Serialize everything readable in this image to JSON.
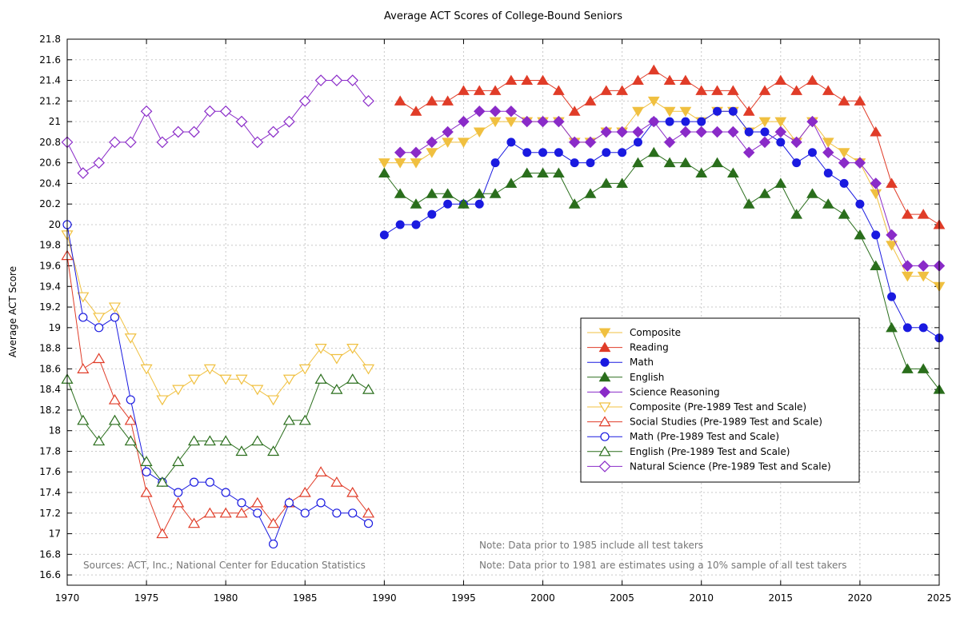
{
  "chart_data": {
    "type": "line",
    "title": "Average ACT Scores of College-Bound Seniors",
    "xlabel": "",
    "ylabel": "Average ACT Score",
    "xlim": [
      1970,
      2025
    ],
    "ylim": [
      16.5,
      21.8
    ],
    "x_ticks": [
      1970,
      1975,
      1980,
      1985,
      1990,
      1995,
      2000,
      2005,
      2010,
      2015,
      2020,
      2025
    ],
    "y_ticks": [
      16.6,
      16.8,
      17,
      17.2,
      17.4,
      17.6,
      17.8,
      18,
      18.2,
      18.4,
      18.6,
      18.8,
      19,
      19.2,
      19.4,
      19.6,
      19.8,
      20,
      20.2,
      20.4,
      20.6,
      20.8,
      21,
      21.2,
      21.4,
      21.6,
      21.8
    ],
    "y_tick_labels": [
      "16.6",
      "16.8",
      "17",
      "17.2",
      "17.4",
      "17.6",
      "17.8",
      "18",
      "18.2",
      "18.4",
      "18.6",
      "18.8",
      "19",
      "19.2",
      "19.4",
      "19.6",
      "19.8",
      "20",
      "20.2",
      "20.4",
      "20.6",
      "20.8",
      "21",
      "21.2",
      "21.4",
      "21.6",
      "21.8"
    ],
    "grid": true,
    "legend_position": "lower-right",
    "notes": [
      "Sources: ACT, Inc.; National Center for Education Statistics",
      "Note: Data prior to 1985 include all test takers",
      "Note: Data prior to 1981 are estimates using a 10% sample of all test takers"
    ],
    "series": [
      {
        "name": "Composite",
        "color": "#f0c040",
        "marker": "triangle-down",
        "filled": true,
        "x": [
          1990,
          1991,
          1992,
          1993,
          1994,
          1995,
          1996,
          1997,
          1998,
          1999,
          2000,
          2001,
          2002,
          2003,
          2004,
          2005,
          2006,
          2007,
          2008,
          2009,
          2010,
          2011,
          2012,
          2013,
          2014,
          2015,
          2016,
          2017,
          2018,
          2019,
          2020,
          2021,
          2022,
          2023,
          2024,
          2025
        ],
        "y": [
          20.6,
          20.6,
          20.6,
          20.7,
          20.8,
          20.8,
          20.9,
          21.0,
          21.0,
          21.0,
          21.0,
          21.0,
          20.8,
          20.8,
          20.9,
          20.9,
          21.1,
          21.2,
          21.1,
          21.1,
          21.0,
          21.1,
          21.1,
          20.9,
          21.0,
          21.0,
          20.8,
          21.0,
          20.8,
          20.7,
          20.6,
          20.3,
          19.8,
          19.5,
          19.5,
          19.4
        ]
      },
      {
        "name": "Reading",
        "color": "#e03c28",
        "marker": "triangle-up",
        "filled": true,
        "x": [
          1991,
          1992,
          1993,
          1994,
          1995,
          1996,
          1997,
          1998,
          1999,
          2000,
          2001,
          2002,
          2003,
          2004,
          2005,
          2006,
          2007,
          2008,
          2009,
          2010,
          2011,
          2012,
          2013,
          2014,
          2015,
          2016,
          2017,
          2018,
          2019,
          2020,
          2021,
          2022,
          2023,
          2024,
          2025
        ],
        "y": [
          21.2,
          21.1,
          21.2,
          21.2,
          21.3,
          21.3,
          21.3,
          21.4,
          21.4,
          21.4,
          21.3,
          21.1,
          21.2,
          21.3,
          21.3,
          21.4,
          21.5,
          21.4,
          21.4,
          21.3,
          21.3,
          21.3,
          21.1,
          21.3,
          21.4,
          21.3,
          21.4,
          21.3,
          21.2,
          21.2,
          20.9,
          20.4,
          20.1,
          20.1,
          20.0
        ]
      },
      {
        "name": "Math",
        "color": "#1a1ae0",
        "marker": "circle",
        "filled": true,
        "x": [
          1990,
          1991,
          1992,
          1993,
          1994,
          1995,
          1996,
          1997,
          1998,
          1999,
          2000,
          2001,
          2002,
          2003,
          2004,
          2005,
          2006,
          2007,
          2008,
          2009,
          2010,
          2011,
          2012,
          2013,
          2014,
          2015,
          2016,
          2017,
          2018,
          2019,
          2020,
          2021,
          2022,
          2023,
          2024,
          2025
        ],
        "y": [
          19.9,
          20.0,
          20.0,
          20.1,
          20.2,
          20.2,
          20.2,
          20.6,
          20.8,
          20.7,
          20.7,
          20.7,
          20.6,
          20.6,
          20.7,
          20.7,
          20.8,
          21.0,
          21.0,
          21.0,
          21.0,
          21.1,
          21.1,
          20.9,
          20.9,
          20.8,
          20.6,
          20.7,
          20.5,
          20.4,
          20.2,
          19.9,
          19.3,
          19.0,
          19.0,
          18.9
        ]
      },
      {
        "name": "English",
        "color": "#2a6e1c",
        "marker": "triangle-up",
        "filled": true,
        "x": [
          1990,
          1991,
          1992,
          1993,
          1994,
          1995,
          1996,
          1997,
          1998,
          1999,
          2000,
          2001,
          2002,
          2003,
          2004,
          2005,
          2006,
          2007,
          2008,
          2009,
          2010,
          2011,
          2012,
          2013,
          2014,
          2015,
          2016,
          2017,
          2018,
          2019,
          2020,
          2021,
          2022,
          2023,
          2024,
          2025
        ],
        "y": [
          20.5,
          20.3,
          20.2,
          20.3,
          20.3,
          20.2,
          20.3,
          20.3,
          20.4,
          20.5,
          20.5,
          20.5,
          20.2,
          20.3,
          20.4,
          20.4,
          20.6,
          20.7,
          20.6,
          20.6,
          20.5,
          20.6,
          20.5,
          20.2,
          20.3,
          20.4,
          20.1,
          20.3,
          20.2,
          20.1,
          19.9,
          19.6,
          19.0,
          18.6,
          18.6,
          18.4
        ]
      },
      {
        "name": "Science Reasoning",
        "color": "#8a2bc8",
        "marker": "diamond",
        "filled": true,
        "x": [
          1991,
          1992,
          1993,
          1994,
          1995,
          1996,
          1997,
          1998,
          1999,
          2000,
          2001,
          2002,
          2003,
          2004,
          2005,
          2006,
          2007,
          2008,
          2009,
          2010,
          2011,
          2012,
          2013,
          2014,
          2015,
          2016,
          2017,
          2018,
          2019,
          2020,
          2021,
          2022,
          2023,
          2024,
          2025
        ],
        "y": [
          20.7,
          20.7,
          20.8,
          20.9,
          21.0,
          21.1,
          21.1,
          21.1,
          21.0,
          21.0,
          21.0,
          20.8,
          20.8,
          20.9,
          20.9,
          20.9,
          21.0,
          20.8,
          20.9,
          20.9,
          20.9,
          20.9,
          20.7,
          20.8,
          20.9,
          20.8,
          21.0,
          20.7,
          20.6,
          20.6,
          20.4,
          19.9,
          19.6,
          19.6,
          19.6
        ]
      },
      {
        "name": "Composite (Pre-1989 Test and Scale)",
        "color": "#f0c040",
        "marker": "triangle-down",
        "filled": false,
        "x": [
          1970,
          1971,
          1972,
          1973,
          1974,
          1975,
          1976,
          1977,
          1978,
          1979,
          1980,
          1981,
          1982,
          1983,
          1984,
          1985,
          1986,
          1987,
          1988,
          1989
        ],
        "y": [
          19.9,
          19.3,
          19.1,
          19.2,
          18.9,
          18.6,
          18.3,
          18.4,
          18.5,
          18.6,
          18.5,
          18.5,
          18.4,
          18.3,
          18.5,
          18.6,
          18.8,
          18.7,
          18.8,
          18.6
        ]
      },
      {
        "name": "Social Studies (Pre-1989 Test and Scale)",
        "color": "#e03c28",
        "marker": "triangle-up",
        "filled": false,
        "x": [
          1970,
          1971,
          1972,
          1973,
          1974,
          1975,
          1976,
          1977,
          1978,
          1979,
          1980,
          1981,
          1982,
          1983,
          1984,
          1985,
          1986,
          1987,
          1988,
          1989
        ],
        "y": [
          19.7,
          18.6,
          18.7,
          18.3,
          18.1,
          17.4,
          17.0,
          17.3,
          17.1,
          17.2,
          17.2,
          17.2,
          17.3,
          17.1,
          17.3,
          17.4,
          17.6,
          17.5,
          17.4,
          17.2
        ]
      },
      {
        "name": "Math (Pre-1989 Test and Scale)",
        "color": "#1a1ae0",
        "marker": "circle",
        "filled": false,
        "x": [
          1970,
          1971,
          1972,
          1973,
          1974,
          1975,
          1976,
          1977,
          1978,
          1979,
          1980,
          1981,
          1982,
          1983,
          1984,
          1985,
          1986,
          1987,
          1988,
          1989
        ],
        "y": [
          20.0,
          19.1,
          19.0,
          19.1,
          18.3,
          17.6,
          17.5,
          17.4,
          17.5,
          17.5,
          17.4,
          17.3,
          17.2,
          16.9,
          17.3,
          17.2,
          17.3,
          17.2,
          17.2,
          17.1
        ]
      },
      {
        "name": "English (Pre-1989 Test and Scale)",
        "color": "#2a6e1c",
        "marker": "triangle-up",
        "filled": false,
        "x": [
          1970,
          1971,
          1972,
          1973,
          1974,
          1975,
          1976,
          1977,
          1978,
          1979,
          1980,
          1981,
          1982,
          1983,
          1984,
          1985,
          1986,
          1987,
          1988,
          1989
        ],
        "y": [
          18.5,
          18.1,
          17.9,
          18.1,
          17.9,
          17.7,
          17.5,
          17.7,
          17.9,
          17.9,
          17.9,
          17.8,
          17.9,
          17.8,
          18.1,
          18.1,
          18.5,
          18.4,
          18.5,
          18.4
        ]
      },
      {
        "name": "Natural Science (Pre-1989 Test and Scale)",
        "color": "#8a2bc8",
        "marker": "diamond",
        "filled": false,
        "x": [
          1970,
          1971,
          1972,
          1973,
          1974,
          1975,
          1976,
          1977,
          1978,
          1979,
          1980,
          1981,
          1982,
          1983,
          1984,
          1985,
          1986,
          1987,
          1988,
          1989
        ],
        "y": [
          20.8,
          20.5,
          20.6,
          20.8,
          20.8,
          21.1,
          20.8,
          20.9,
          20.9,
          21.1,
          21.1,
          21.0,
          20.8,
          20.9,
          21.0,
          21.2,
          21.4,
          21.4,
          21.4,
          21.2
        ]
      }
    ]
  }
}
